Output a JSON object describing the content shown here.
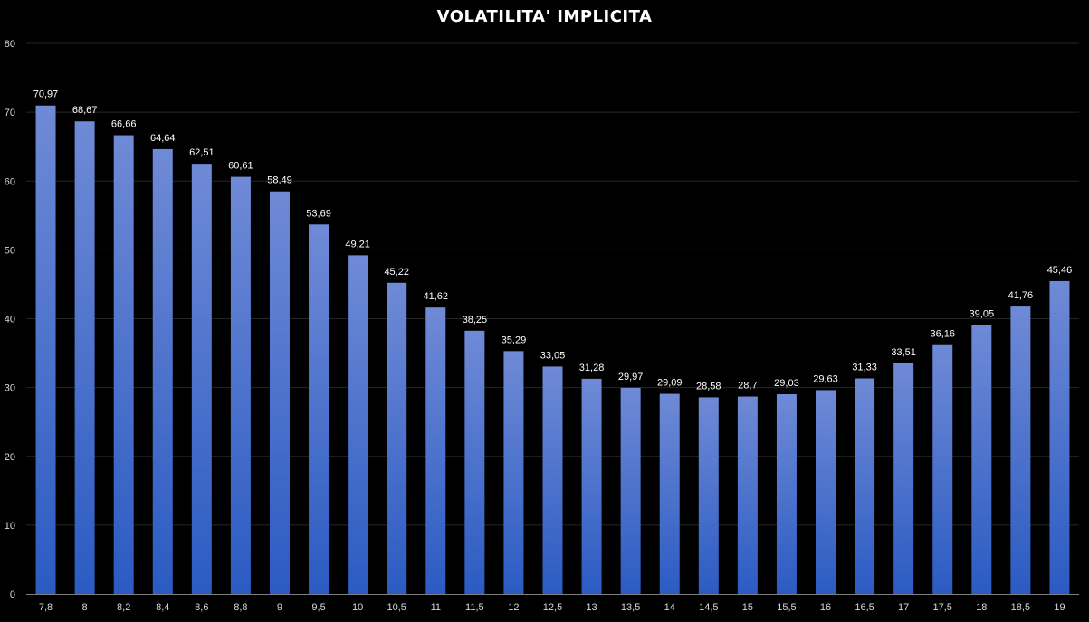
{
  "chart_data": {
    "type": "bar",
    "title": "VOLATILITA' IMPLICITA",
    "xlabel": "",
    "ylabel": "",
    "ylim": [
      0,
      80
    ],
    "yticks": [
      0,
      10,
      20,
      30,
      40,
      50,
      60,
      70,
      80
    ],
    "grid": true,
    "legend": "none",
    "categories": [
      "7,8",
      "8",
      "8,2",
      "8,4",
      "8,6",
      "8,8",
      "9",
      "9,5",
      "10",
      "10,5",
      "11",
      "11,5",
      "12",
      "12,5",
      "13",
      "13,5",
      "14",
      "14,5",
      "15",
      "15,5",
      "16",
      "16,5",
      "17",
      "17,5",
      "18",
      "18,5",
      "19"
    ],
    "values": [
      70.97,
      68.67,
      66.66,
      64.64,
      62.51,
      60.61,
      58.49,
      53.69,
      49.21,
      45.22,
      41.62,
      38.25,
      35.29,
      33.05,
      31.28,
      29.97,
      29.09,
      28.58,
      28.7,
      29.03,
      29.63,
      31.33,
      33.51,
      36.16,
      39.05,
      41.76,
      45.46
    ],
    "data_labels": [
      "70,97",
      "68,67",
      "66,66",
      "64,64",
      "62,51",
      "60,61",
      "58,49",
      "53,69",
      "49,21",
      "45,22",
      "41,62",
      "38,25",
      "35,29",
      "33,05",
      "31,28",
      "29,97",
      "29,09",
      "28,58",
      "28,7",
      "29,03",
      "29,63",
      "31,33",
      "33,51",
      "36,16",
      "39,05",
      "41,76",
      "45,46"
    ],
    "colors": {
      "background": "#000000",
      "bar_top": "#6f8ad6",
      "bar_bottom": "#2b5bc2",
      "gridline": "#262626",
      "axis": "#7f7f7f",
      "text": "#ffffff",
      "tick_text": "#d9d9d9"
    }
  }
}
